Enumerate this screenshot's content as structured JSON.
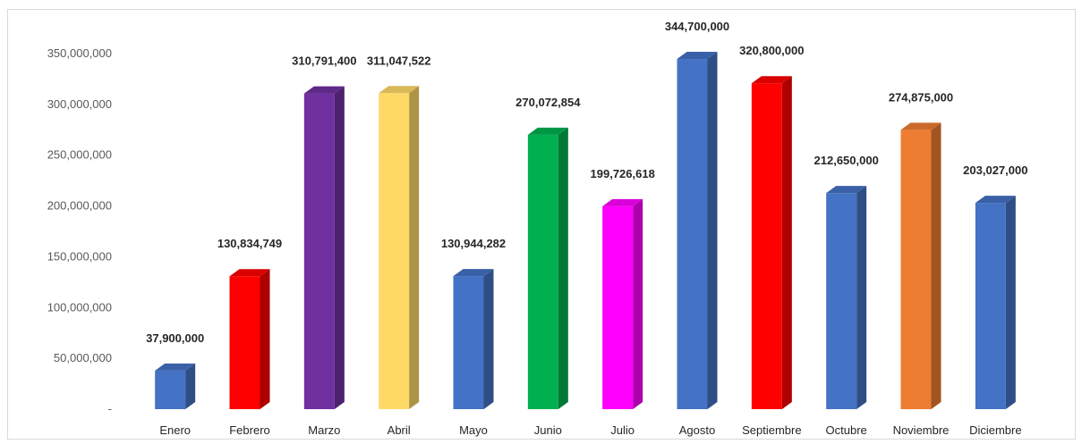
{
  "chart_data": {
    "type": "bar",
    "style": "3d-column",
    "title": "",
    "xlabel": "",
    "ylabel": "",
    "ylim": [
      0,
      350000000
    ],
    "yticks": [
      0,
      50000000,
      100000000,
      150000000,
      200000000,
      250000000,
      300000000,
      350000000
    ],
    "ytick_labels": [
      "-",
      "50,000,000",
      "100,000,000",
      "150,000,000",
      "200,000,000",
      "250,000,000",
      "300,000,000",
      "350,000,000"
    ],
    "grid": false,
    "legend": "none",
    "categories": [
      "Enero",
      "Febrero",
      "Marzo",
      "Abril",
      "Mayo",
      "Junio",
      "Julio",
      "Agosto",
      "Septiembre",
      "Octubre",
      "Noviembre",
      "Diciembre"
    ],
    "values": [
      37900000,
      130834749,
      310791400,
      311047522,
      130944282,
      270072854,
      199726618,
      344700000,
      320800000,
      212650000,
      274875000,
      203027000
    ],
    "value_labels": [
      "37,900,000",
      "130,834,749",
      "310,791,400",
      "311,047,522",
      "130,944,282",
      "270,072,854",
      "199,726,618",
      "344,700,000",
      "320,800,000",
      "212,650,000",
      "274,875,000",
      "203,027,000"
    ],
    "colors": [
      "#4472c4",
      "#ff0000",
      "#7030a0",
      "#ffd966",
      "#4472c4",
      "#00b050",
      "#ff00ff",
      "#4472c4",
      "#ff0000",
      "#4472c4",
      "#ed7d31",
      "#4472c4"
    ]
  }
}
